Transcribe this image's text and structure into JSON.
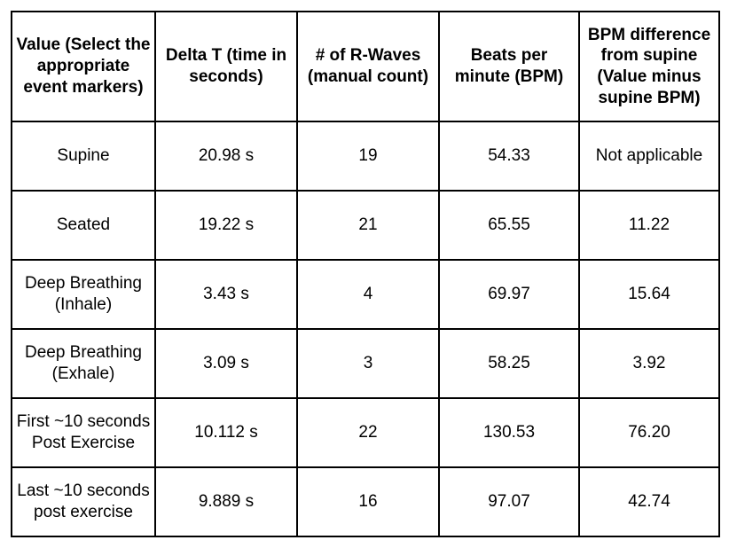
{
  "table": {
    "border_color": "#000000",
    "background_color": "#ffffff",
    "text_color": "#000000",
    "header_fontsize": 19,
    "cell_fontsize": 19,
    "columns": [
      "Value (Select the appropriate event markers)",
      "Delta T (time in seconds)",
      "# of R-Waves (manual count)",
      "Beats per minute (BPM)",
      "BPM difference from supine (Value minus supine BPM)"
    ],
    "rows": [
      {
        "value": "Supine",
        "delta_t": "20.98 s",
        "r_waves": "19",
        "bpm": "54.33",
        "bpm_diff": "Not applicable"
      },
      {
        "value": "Seated",
        "delta_t": "19.22 s",
        "r_waves": "21",
        "bpm": "65.55",
        "bpm_diff": "11.22"
      },
      {
        "value": "Deep Breathing (Inhale)",
        "delta_t": "3.43 s",
        "r_waves": "4",
        "bpm": "69.97",
        "bpm_diff": "15.64"
      },
      {
        "value": "Deep Breathing (Exhale)",
        "delta_t": "3.09 s",
        "r_waves": "3",
        "bpm": "58.25",
        "bpm_diff": "3.92"
      },
      {
        "value": "First ~10 seconds Post Exercise",
        "delta_t": "10.112 s",
        "r_waves": "22",
        "bpm": "130.53",
        "bpm_diff": "76.20"
      },
      {
        "value": "Last ~10 seconds post exercise",
        "delta_t": "9.889 s",
        "r_waves": "16",
        "bpm": "97.07",
        "bpm_diff": "42.74"
      }
    ]
  }
}
